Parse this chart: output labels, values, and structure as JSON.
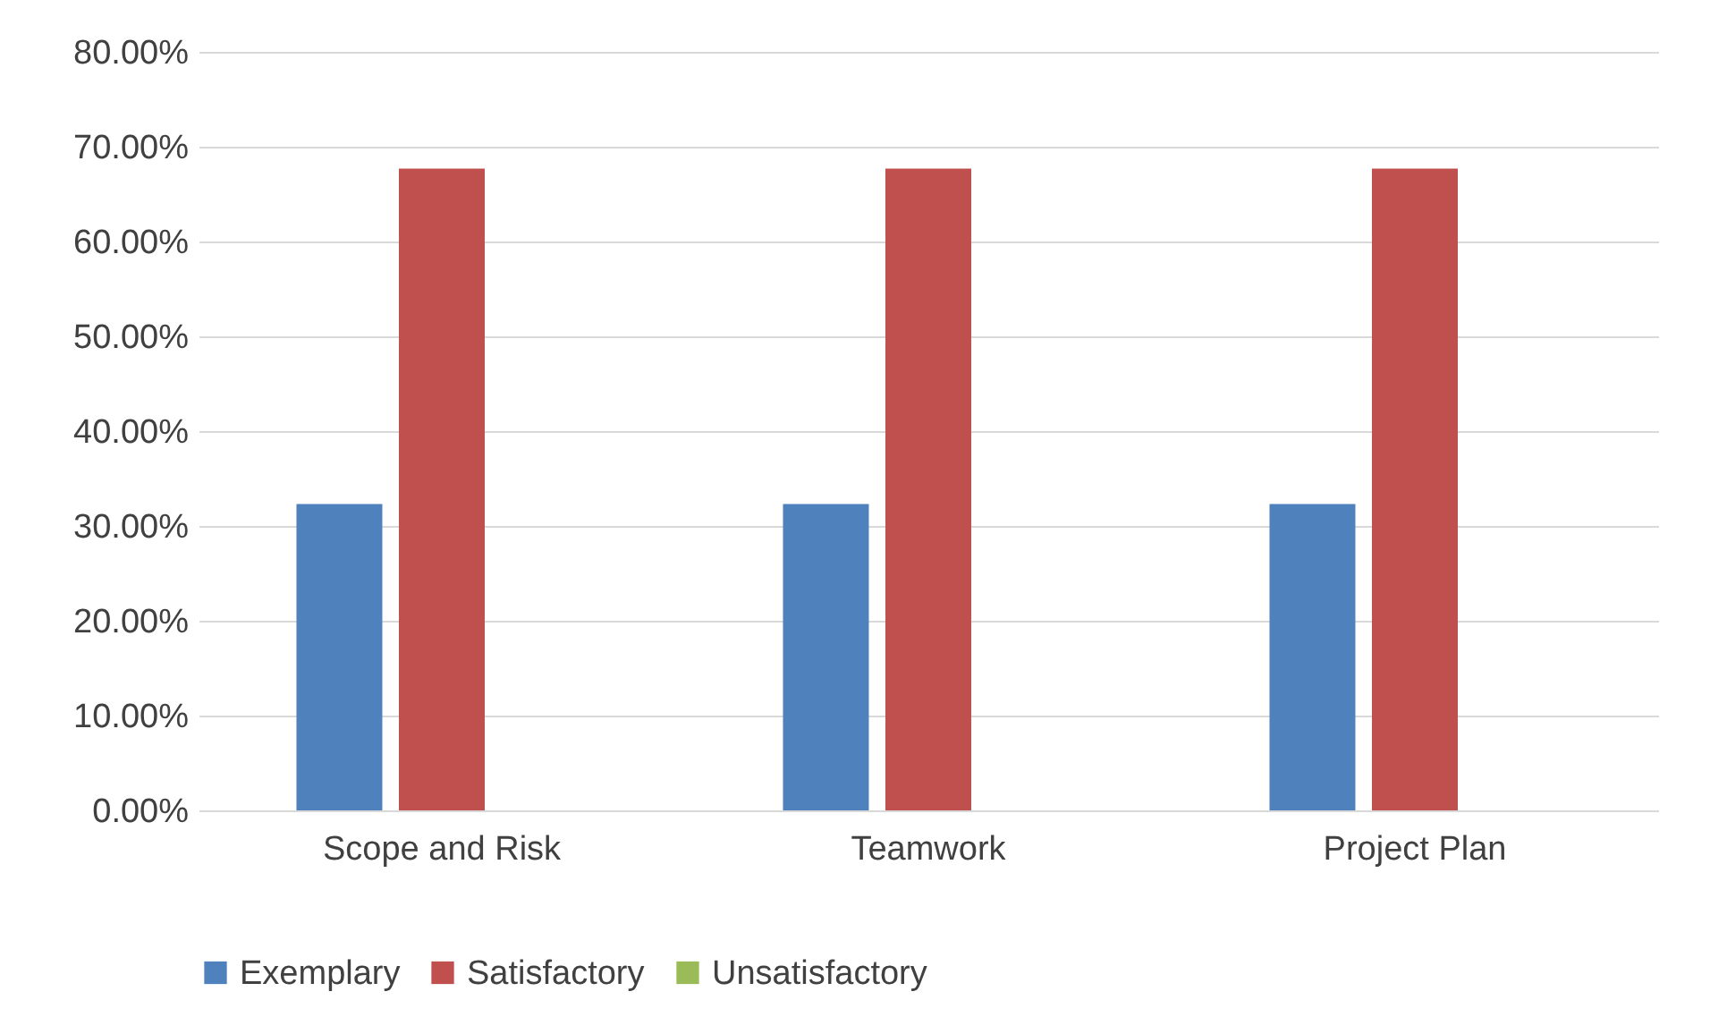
{
  "chart_data": {
    "type": "bar",
    "categories": [
      "Scope and Risk",
      "Teamwork",
      "Project Plan"
    ],
    "series": [
      {
        "name": "Exemplary",
        "color": "#4f81bd",
        "values": [
          32.3,
          32.3,
          32.3
        ]
      },
      {
        "name": "Satisfactory",
        "color": "#c0504d",
        "values": [
          67.7,
          67.7,
          67.7
        ]
      },
      {
        "name": "Unsatisfactory",
        "color": "#9bbb59",
        "values": [
          0,
          0,
          0
        ]
      }
    ],
    "ylim": [
      0,
      80
    ],
    "yticks": [
      {
        "value": 0,
        "label": "0.00%"
      },
      {
        "value": 10,
        "label": "10.00%"
      },
      {
        "value": 20,
        "label": "20.00%"
      },
      {
        "value": 30,
        "label": "30.00%"
      },
      {
        "value": 40,
        "label": "40.00%"
      },
      {
        "value": 50,
        "label": "50.00%"
      },
      {
        "value": 60,
        "label": "60.00%"
      },
      {
        "value": 70,
        "label": "70.00%"
      },
      {
        "value": 80,
        "label": "80.00%"
      }
    ],
    "grid": "y",
    "legend": "bottom"
  }
}
